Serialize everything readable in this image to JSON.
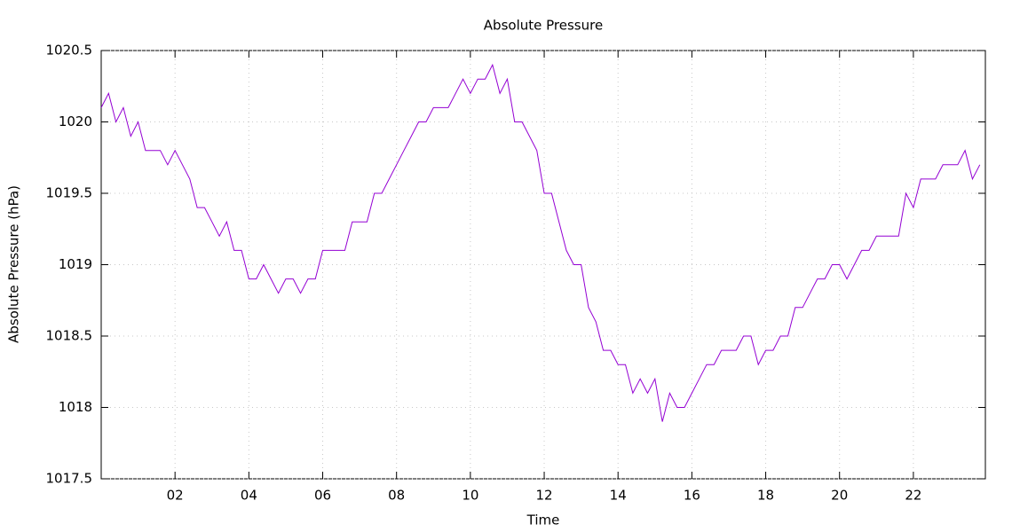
{
  "chart_data": {
    "type": "line",
    "title": "Absolute Pressure",
    "xlabel": "Time",
    "ylabel": "Absolute Pressure (hPa)",
    "x": [
      0,
      0.2,
      0.4,
      0.6,
      0.8,
      1,
      1.2,
      1.4,
      1.6,
      1.8,
      2,
      2.2,
      2.4,
      2.6,
      2.8,
      3,
      3.2,
      3.4,
      3.6,
      3.8,
      4,
      4.2,
      4.4,
      4.6,
      4.8,
      5,
      5.2,
      5.4,
      5.6,
      5.8,
      6,
      6.2,
      6.4,
      6.6,
      6.8,
      7,
      7.2,
      7.4,
      7.6,
      7.8,
      8,
      8.2,
      8.4,
      8.6,
      8.8,
      9,
      9.2,
      9.4,
      9.6,
      9.8,
      10,
      10.2,
      10.4,
      10.6,
      10.8,
      11,
      11.2,
      11.4,
      11.6,
      11.8,
      12,
      12.2,
      12.4,
      12.6,
      12.8,
      13,
      13.2,
      13.4,
      13.6,
      13.8,
      14,
      14.2,
      14.4,
      14.6,
      14.8,
      15,
      15.2,
      15.4,
      15.6,
      15.8,
      16,
      16.2,
      16.4,
      16.6,
      16.8,
      17,
      17.2,
      17.4,
      17.6,
      17.8,
      18,
      18.2,
      18.4,
      18.6,
      18.8,
      19,
      19.2,
      19.4,
      19.6,
      19.8,
      20,
      20.2,
      20.4,
      20.6,
      20.8,
      21,
      21.2,
      21.4,
      21.6,
      21.8,
      22,
      22.2,
      22.4,
      22.6,
      22.8,
      23,
      23.2,
      23.4,
      23.6,
      23.8
    ],
    "series": [
      {
        "name": "Absolute Pressure",
        "color": "#9400d3",
        "values": [
          1020.1,
          1020.2,
          1020.0,
          1020.1,
          1019.9,
          1020.0,
          1019.8,
          1019.8,
          1019.8,
          1019.7,
          1019.8,
          1019.7,
          1019.6,
          1019.4,
          1019.4,
          1019.3,
          1019.2,
          1019.3,
          1019.1,
          1019.1,
          1018.9,
          1018.9,
          1019.0,
          1018.9,
          1018.8,
          1018.9,
          1018.9,
          1018.8,
          1018.9,
          1018.9,
          1019.1,
          1019.1,
          1019.1,
          1019.1,
          1019.3,
          1019.3,
          1019.3,
          1019.5,
          1019.5,
          1019.6,
          1019.7,
          1019.8,
          1019.9,
          1020.0,
          1020.0,
          1020.1,
          1020.1,
          1020.1,
          1020.2,
          1020.3,
          1020.2,
          1020.3,
          1020.3,
          1020.4,
          1020.2,
          1020.3,
          1020.0,
          1020.0,
          1019.9,
          1019.8,
          1019.5,
          1019.5,
          1019.3,
          1019.1,
          1019.0,
          1019.0,
          1018.7,
          1018.6,
          1018.4,
          1018.4,
          1018.3,
          1018.3,
          1018.1,
          1018.2,
          1018.1,
          1018.2,
          1017.9,
          1018.1,
          1018.0,
          1018.0,
          1018.1,
          1018.2,
          1018.3,
          1018.3,
          1018.4,
          1018.4,
          1018.4,
          1018.5,
          1018.5,
          1018.3,
          1018.4,
          1018.4,
          1018.5,
          1018.5,
          1018.7,
          1018.7,
          1018.8,
          1018.9,
          1018.9,
          1019.0,
          1019.0,
          1018.9,
          1019.0,
          1019.1,
          1019.1,
          1019.2,
          1019.2,
          1019.2,
          1019.2,
          1019.5,
          1019.4,
          1019.6,
          1019.6,
          1019.6,
          1019.7,
          1019.7,
          1019.7,
          1019.8,
          1019.6,
          1019.7
        ]
      }
    ],
    "xlim": [
      0,
      23.95
    ],
    "xticks": [
      {
        "value": 2,
        "label": "02"
      },
      {
        "value": 4,
        "label": "04"
      },
      {
        "value": 6,
        "label": "06"
      },
      {
        "value": 8,
        "label": "08"
      },
      10,
      12,
      14,
      16,
      18,
      20,
      22
    ],
    "ylim": [
      1017.5,
      1020.5
    ],
    "yticks": [
      1017.5,
      1018,
      1018.5,
      1019,
      1019.5,
      1020,
      1020.5
    ],
    "grid": true
  }
}
